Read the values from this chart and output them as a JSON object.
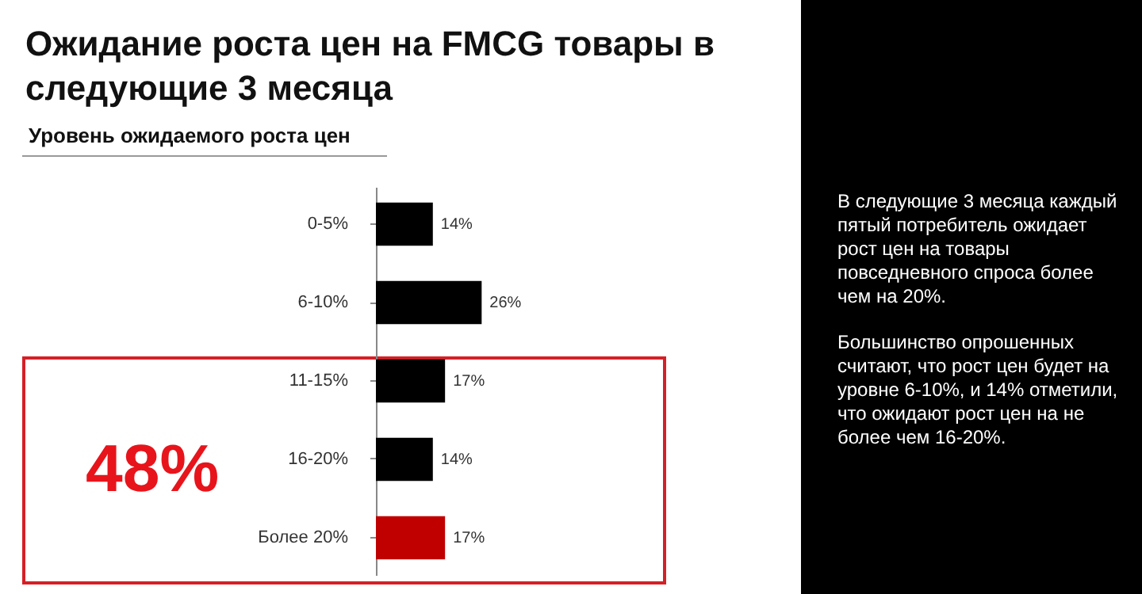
{
  "chart_data": {
    "type": "bar",
    "orientation": "horizontal",
    "title": "Ожидание роста цен на FMCG товары в следующие 3 месяца",
    "subtitle": "Уровень ожидаемого роста цен",
    "categories": [
      "0-5%",
      "6-10%",
      "11-15%",
      "16-20%",
      "Более 20%"
    ],
    "values": [
      14,
      26,
      17,
      14,
      17
    ],
    "colors": [
      "#000000",
      "#000000",
      "#000000",
      "#000000",
      "#c00000"
    ],
    "value_labels": [
      "14%",
      "26%",
      "17%",
      "14%",
      "17%"
    ],
    "annotations": [
      "48%",
      "В следующие 3 месяца каждый пятый потребитель ожидает рост цен на товары повседневного спроса более чем на 20%.",
      "Большинство опрошенных считают, что рост цен будет на уровне 6-10%, и 14% отметили, что ожидают рост цен на не более чем 16-20%."
    ]
  }
}
